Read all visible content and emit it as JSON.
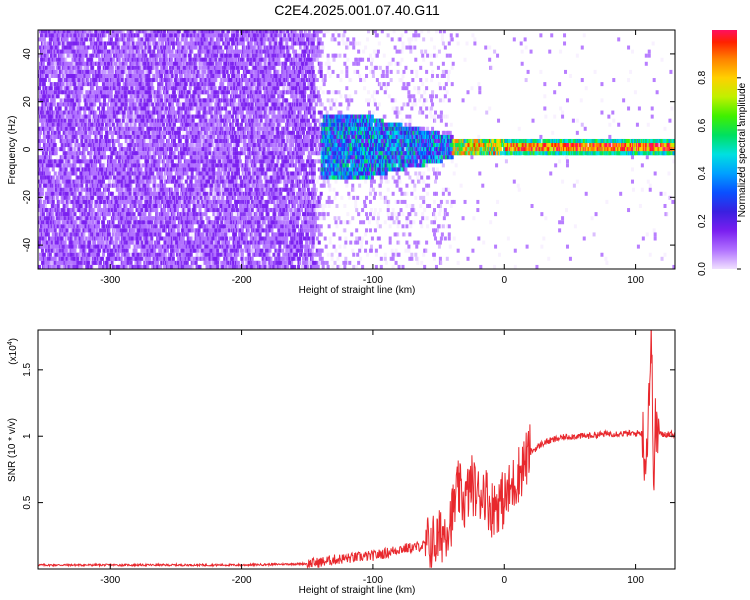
{
  "title": "C2E4.2025.001.07.40.G11",
  "colors": {
    "snr_line": "#e8282d",
    "colormap": [
      "#f0e0ff",
      "#b070ff",
      "#7a1ff0",
      "#3a20e0",
      "#0a50ff",
      "#00a0ff",
      "#00e0e0",
      "#00e060",
      "#40f000",
      "#c0f000",
      "#ffd000",
      "#ff8000",
      "#ff2000",
      "#ff1060"
    ]
  },
  "chart_data": [
    {
      "type": "heatmap",
      "xlabel": "Height of straight line (km)",
      "ylabel": "Frequency (Hz)",
      "xlim": [
        -355,
        130
      ],
      "ylim": [
        -50,
        50
      ],
      "xticks": [
        -300,
        -200,
        -100,
        0,
        100
      ],
      "yticks": [
        -40,
        -20,
        0,
        20,
        40
      ],
      "colorbar": {
        "label": "Normalized spectral amplitude",
        "range": [
          0,
          1
        ],
        "ticks": [
          0.0,
          0.2,
          0.4,
          0.6,
          0.8
        ]
      }
    },
    {
      "type": "line",
      "xlabel": "Height of straight line (km)",
      "ylabel": "SNR (10 * v/v)",
      "yscale_label": "(x10",
      "yscale_exp": "4",
      "yscale_close": ")",
      "xlim": [
        -355,
        130
      ],
      "ylim": [
        0,
        1.8
      ],
      "xticks": [
        -300,
        -200,
        -100,
        0,
        100
      ],
      "yticks": [
        0.5,
        1.0,
        1.5
      ],
      "series": [
        {
          "x": [
            -355,
            -300,
            -250,
            -200,
            -150,
            -140,
            -130,
            -120,
            -110,
            -100,
            -90,
            -80,
            -70,
            -60,
            -50,
            -45,
            -40,
            -35,
            -30,
            -25,
            -20,
            -15,
            -10,
            -5,
            0,
            5,
            10,
            15,
            20,
            30,
            40,
            50,
            60,
            70,
            80,
            90,
            100,
            105,
            108,
            110,
            112,
            114,
            115,
            120,
            125,
            130
          ],
          "y": [
            0.03,
            0.03,
            0.03,
            0.03,
            0.04,
            0.05,
            0.07,
            0.08,
            0.09,
            0.1,
            0.12,
            0.15,
            0.16,
            0.18,
            0.22,
            0.3,
            0.4,
            0.6,
            0.5,
            0.65,
            0.55,
            0.6,
            0.45,
            0.5,
            0.52,
            0.6,
            0.7,
            0.8,
            0.88,
            0.95,
            0.98,
            1.0,
            1.0,
            1.01,
            1.02,
            1.02,
            1.02,
            1.03,
            0.8,
            1.3,
            1.7,
            0.7,
            1.05,
            1.01,
            1.02,
            1.01
          ]
        }
      ]
    }
  ]
}
